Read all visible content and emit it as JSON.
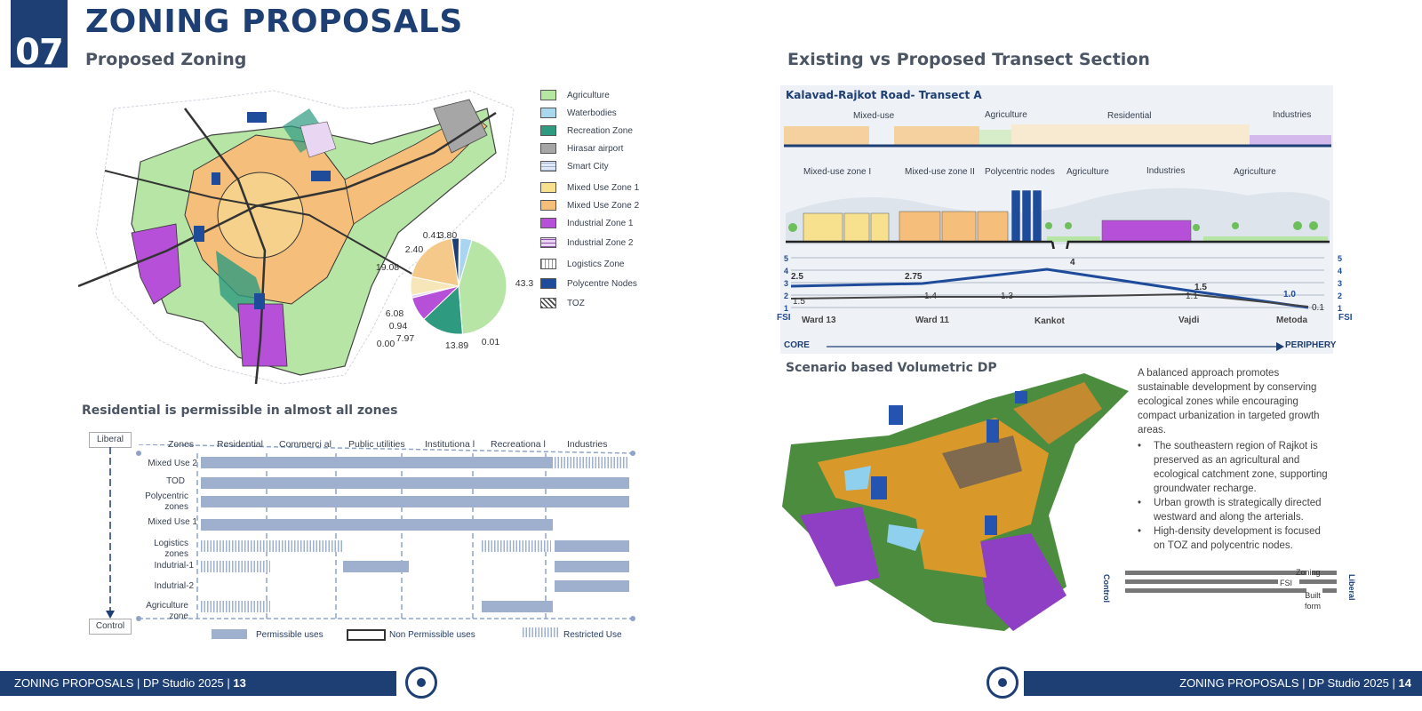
{
  "header": {
    "number": "07",
    "title": "ZONING PROPOSALS",
    "left_subtitle": "Proposed Zoning",
    "right_subtitle": "Existing vs Proposed Transect Section"
  },
  "legend": [
    {
      "label": "Agriculture",
      "color": "#b5e6a2"
    },
    {
      "label": "Waterbodies",
      "color": "#a9d8ee"
    },
    {
      "label": "Recreation Zone",
      "color": "#2e9a80"
    },
    {
      "label": "Hirasar airport",
      "color": "#a6a6a6"
    },
    {
      "label": "Smart City",
      "color": "#dfe9f7"
    },
    {
      "label": "Mixed Use Zone 1",
      "color": "#f7e08e"
    },
    {
      "label": "Mixed Use Zone 2",
      "color": "#f5be7a"
    },
    {
      "label": "Industrial Zone 1",
      "color": "#b750d8"
    },
    {
      "label": "Industrial Zone 2",
      "color": "#e9d6f3"
    },
    {
      "label": "Logistics Zone",
      "color": "#ffffff"
    },
    {
      "label": "Polycentre Nodes",
      "color": "#1e4b9a"
    },
    {
      "label": "TOZ",
      "color": "#ffffff"
    }
  ],
  "chart_data": {
    "type": "pie",
    "slices": [
      {
        "label": "43.3",
        "value": 43.3,
        "color": "#b7e5a6"
      },
      {
        "label": "0.01",
        "value": 0.01,
        "color": "#a9d8ee"
      },
      {
        "label": "13.89",
        "value": 13.89,
        "color": "#2e9a80"
      },
      {
        "label": "0.00",
        "value": 0.0,
        "color": "#a6a6a6"
      },
      {
        "label": "7.97",
        "value": 7.97,
        "color": "#b750d8"
      },
      {
        "label": "0.94",
        "value": 0.94,
        "color": "#e9d6f3"
      },
      {
        "label": "6.08",
        "value": 6.08,
        "color": "#f7e6b8"
      },
      {
        "label": "19.08",
        "value": 19.08,
        "color": "#f5c98a"
      },
      {
        "label": "2.40",
        "value": 2.4,
        "color": "#1e3f73"
      },
      {
        "label": "0.41",
        "value": 0.41,
        "color": "#f0f0f0"
      },
      {
        "label": "3.80",
        "value": 3.8,
        "color": "#a9d4f2"
      }
    ]
  },
  "permissibility": {
    "title": "Residential is permissible in almost all zones",
    "liberal": "Liberal",
    "control": "Control",
    "zones_header": "Zones",
    "columns": [
      "Residential",
      "Commerci al",
      "Public utilities",
      "Institutiona l",
      "Recreationa l",
      "Industries"
    ],
    "rows": [
      "Mixed Use 2",
      "TOD",
      "Polycentric zones",
      "Mixed Use 1",
      "Logistics zones",
      "Indutrial-1",
      "Indutrial-2",
      "Agriculture zone"
    ],
    "legend": {
      "permissible": "Permissible uses",
      "non": "Non Permissible uses",
      "restricted": "Restricted Use"
    }
  },
  "transect": {
    "title": "Kalavad-Rajkot Road- Transect A",
    "existing_labels": [
      "Mixed-use",
      "Agriculture",
      "Residential",
      "Industries"
    ],
    "proposed_labels": [
      "Mixed-use zone I",
      "Mixed-use zone II",
      "Polycentric nodes",
      "Agriculture",
      "Industries",
      "Agriculture"
    ],
    "fsi_label": "FSI",
    "axis_ticks": [
      "1",
      "2",
      "3",
      "4",
      "5"
    ],
    "locations": [
      "Ward 13",
      "Ward 11",
      "Kankot",
      "Vajdi",
      "Metoda"
    ],
    "proposed_values": [
      "2.5",
      "2.75",
      "4",
      "1.5",
      "1.0"
    ],
    "existing_values": [
      "1.5",
      "1.4",
      "1.3",
      "1.1",
      "0.1"
    ],
    "core": "CORE",
    "periphery": "PERIPHERY"
  },
  "scenario": {
    "title": "Scenario based Volumetric DP",
    "intro": "A balanced approach promotes sustainable development by conserving ecological zones while encouraging compact urbanization in targeted growth areas.",
    "bullets": [
      "The southeastern region of Rajkot is preserved as an agricultural and ecological catchment zone, supporting groundwater recharge.",
      "Urban growth is strategically directed westward and along the arterials.",
      "High-density development is focused on TOZ and polycentric nodes."
    ],
    "scale": {
      "control": "Control",
      "liberal": "Liberal",
      "zoning": "Zoning",
      "fsi": "FSI",
      "built": "Built form"
    }
  },
  "footer": {
    "left": "ZONING PROPOSALS | DP Studio 2025 |",
    "left_page": "13",
    "right": "ZONING PROPOSALS | DP Studio 2025 |",
    "right_page": "14"
  }
}
